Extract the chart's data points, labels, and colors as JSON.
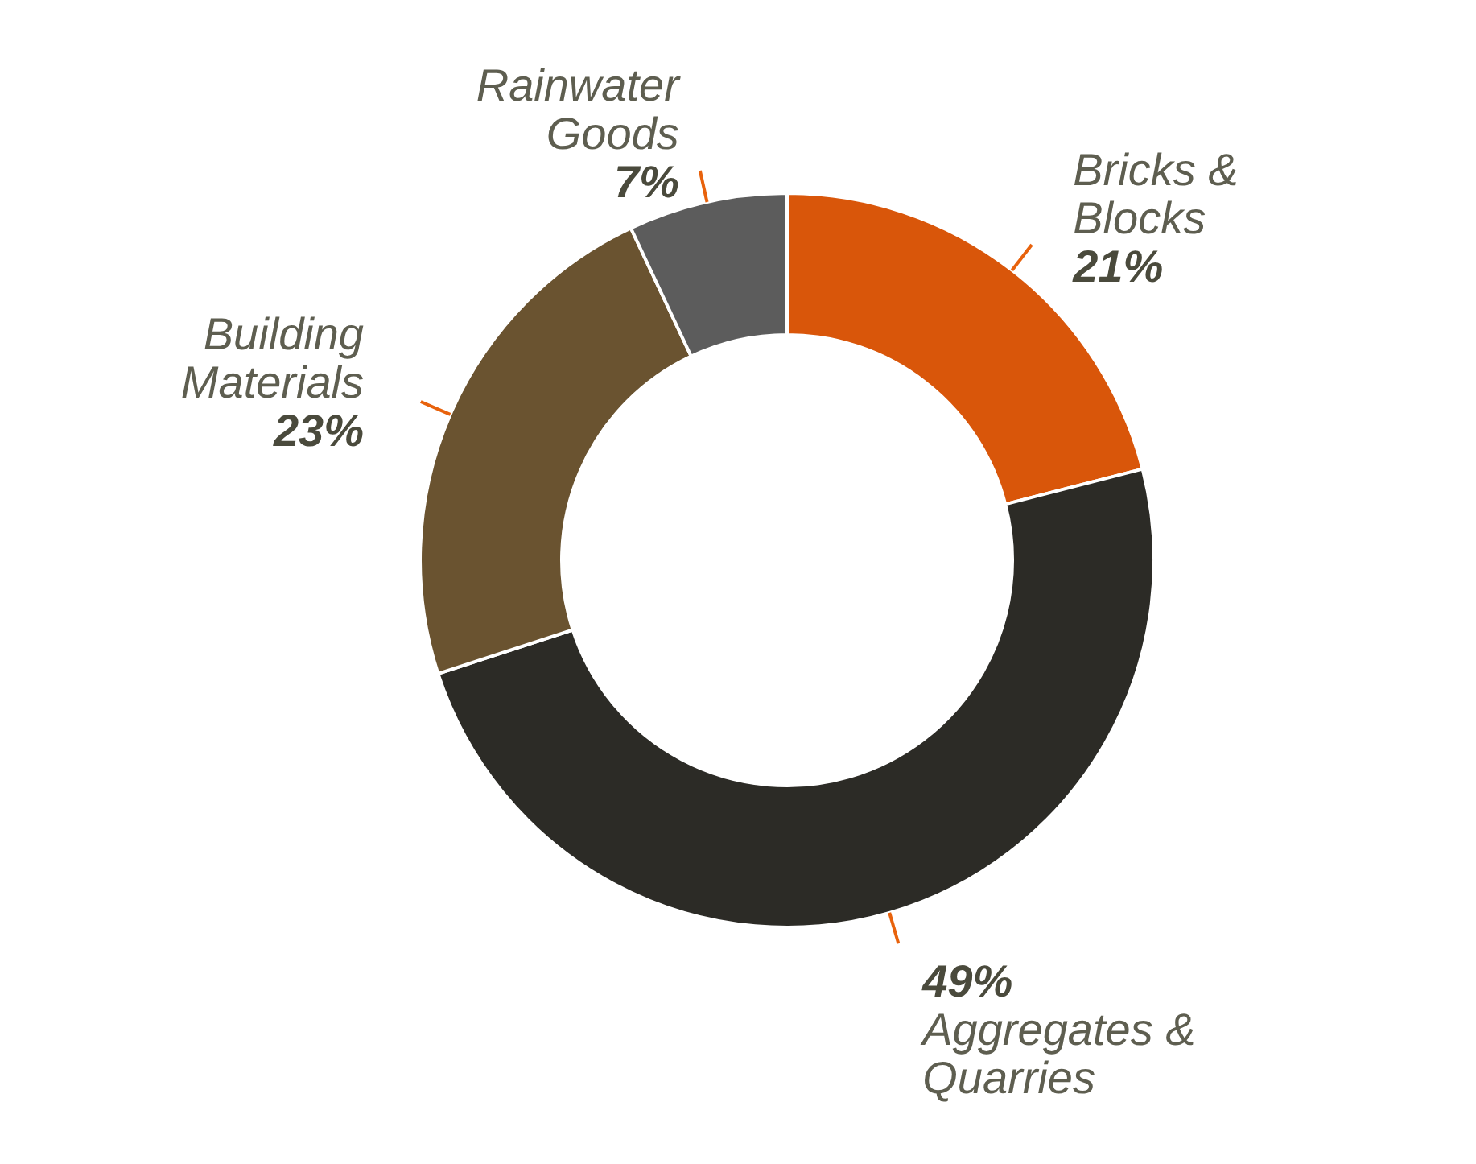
{
  "chart_data": {
    "type": "donut",
    "categories": [
      "Bricks & Blocks",
      "Aggregates & Quarries",
      "Building Materials",
      "Rainwater Goods"
    ],
    "values": [
      21,
      49,
      23,
      7
    ],
    "value_labels": [
      "21%",
      "49%",
      "23%",
      "7%"
    ],
    "colors": [
      "#d9560a",
      "#2c2b26",
      "#6a5330",
      "#5c5c5c"
    ]
  }
}
